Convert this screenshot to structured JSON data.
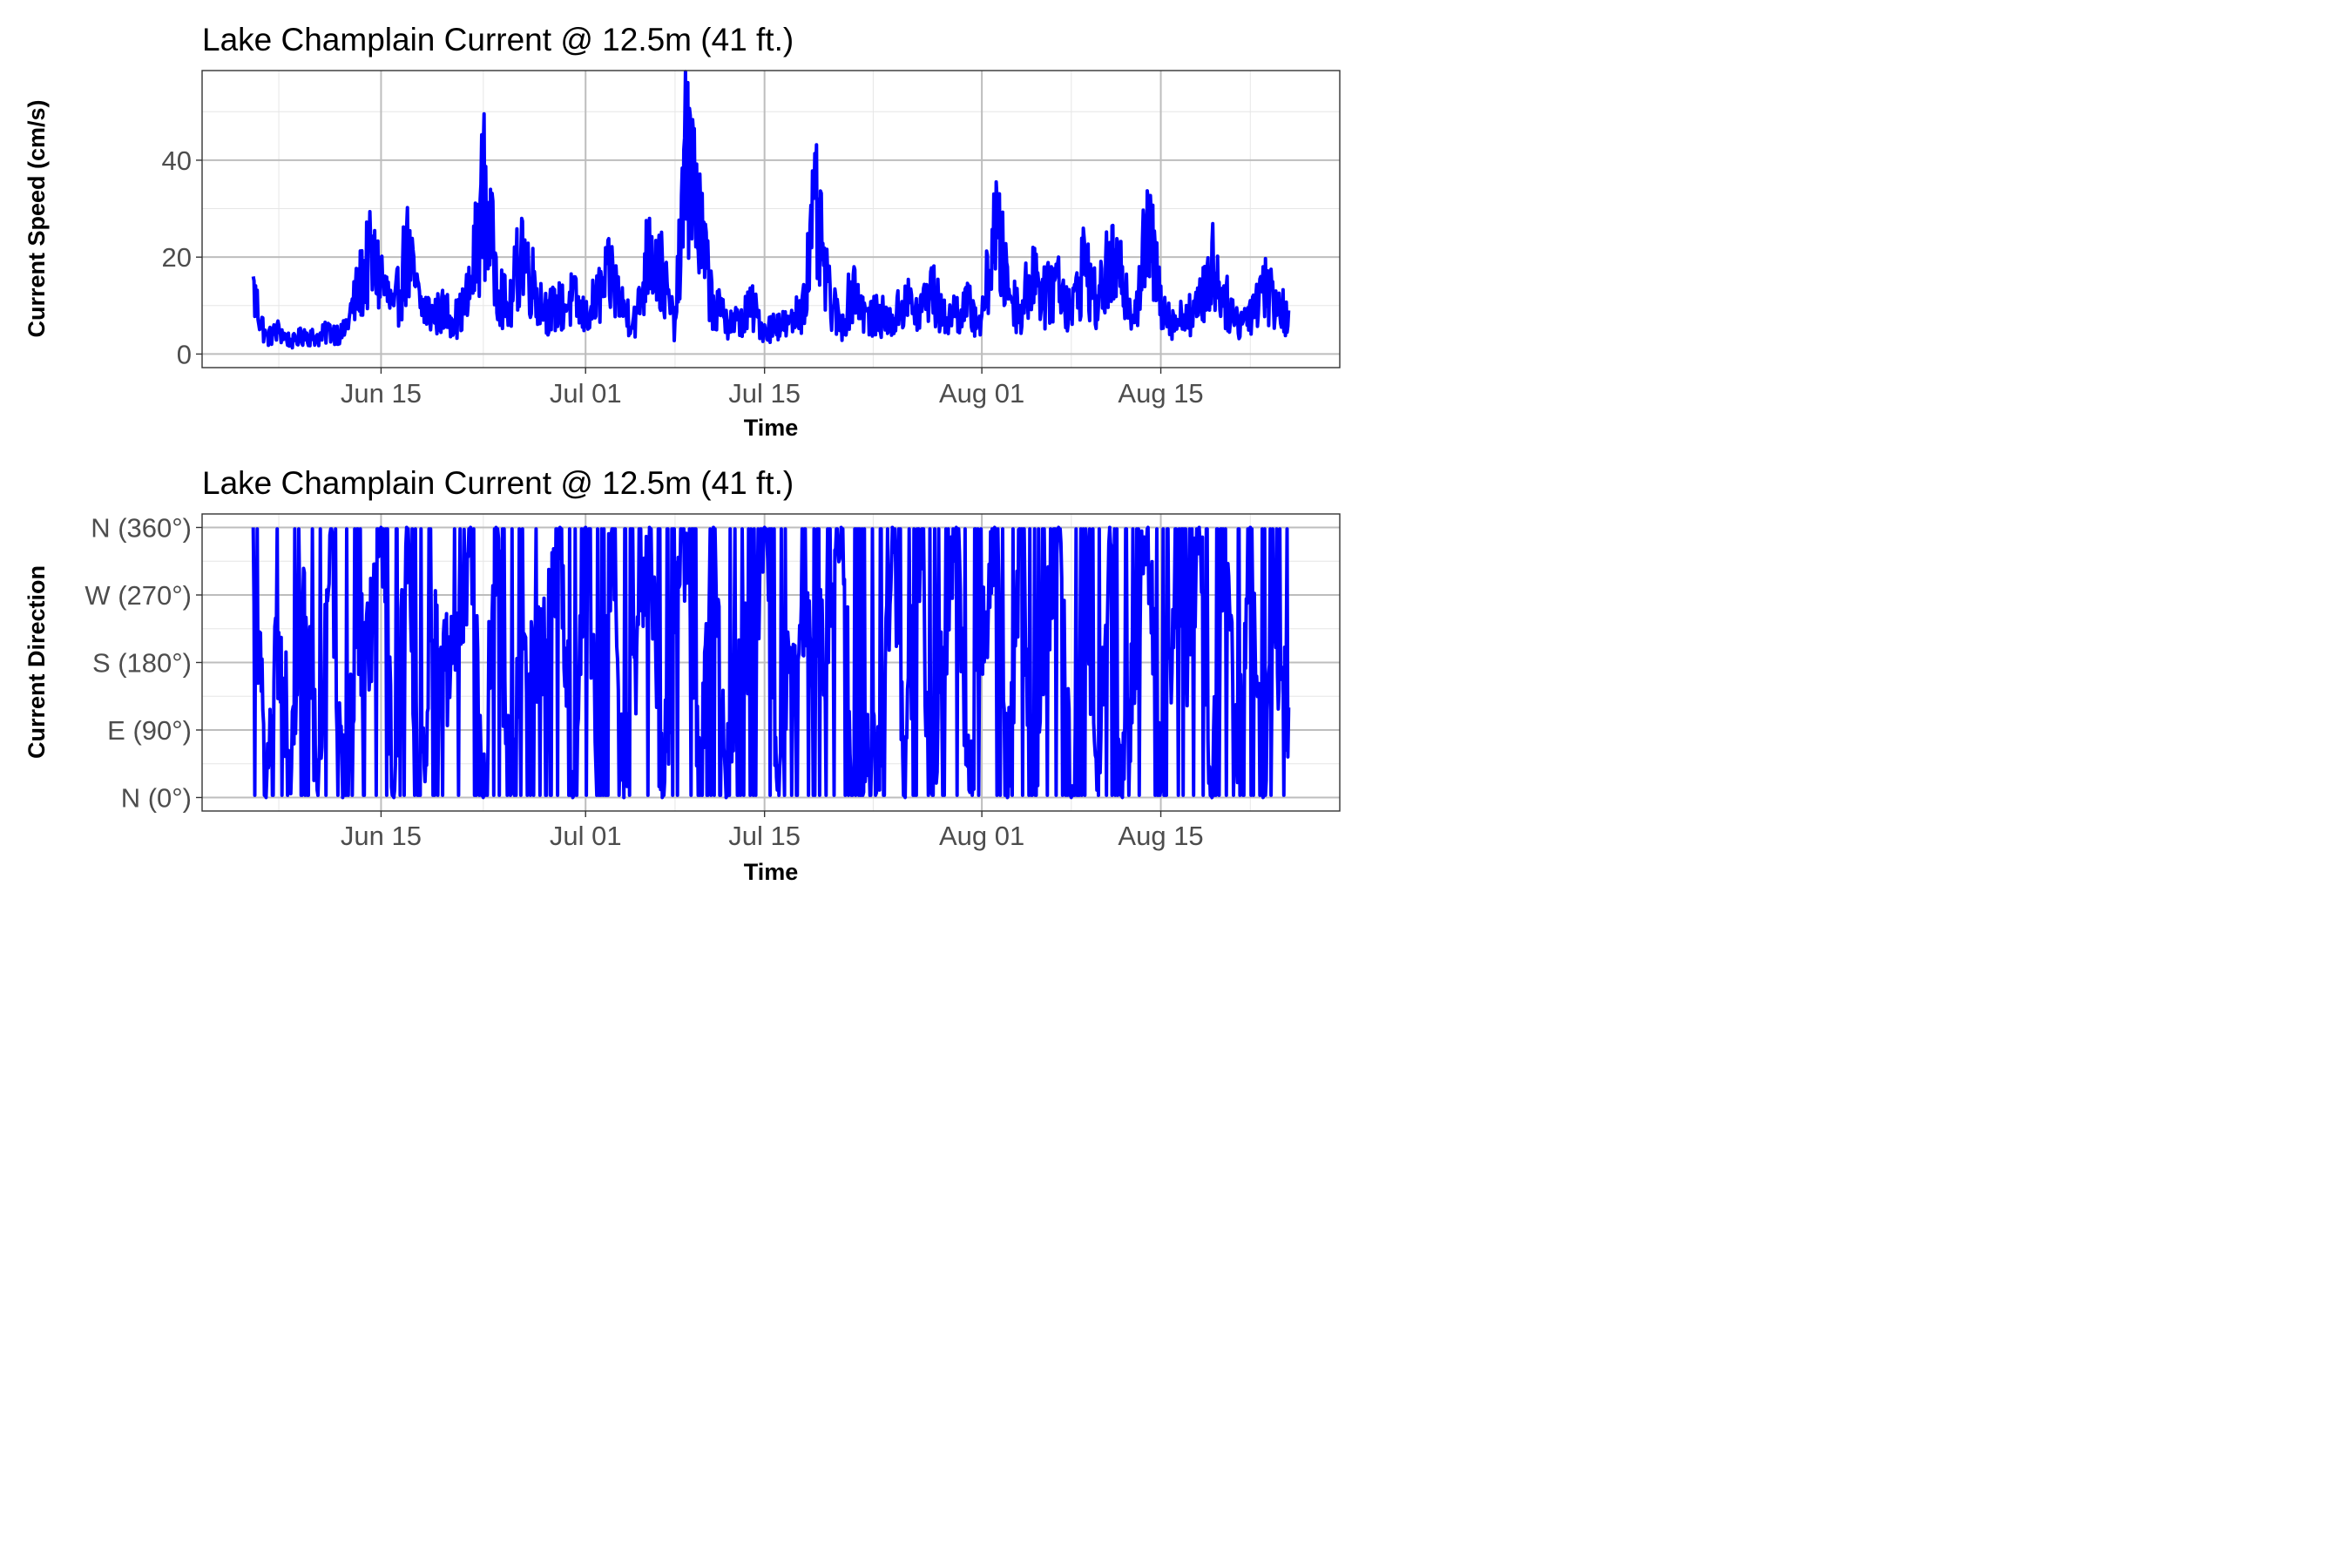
{
  "chart_data": [
    {
      "type": "line",
      "title": "Lake Champlain Current @ 12.5m (41 ft.)",
      "xlabel": "Time",
      "ylabel": "Current Speed (cm/s)",
      "x_ticks": [
        "Jun 15",
        "Jul 01",
        "Jul 15",
        "Aug 01",
        "Aug 15"
      ],
      "x_tick_dates": [
        "2019-06-15",
        "2019-07-01",
        "2019-07-15",
        "2019-08-01",
        "2019-08-15"
      ],
      "xlim": [
        "2019-06-01",
        "2019-08-29"
      ],
      "y_ticks": [
        0,
        20,
        40
      ],
      "ylim": [
        -2.8,
        58.5
      ],
      "grid": true,
      "series": [
        {
          "color": "#0000ff",
          "x": [
            "2019-06-05",
            "2019-06-06",
            "2019-06-07",
            "2019-06-08",
            "2019-06-09",
            "2019-06-10",
            "2019-06-11",
            "2019-06-12",
            "2019-06-13",
            "2019-06-14",
            "2019-06-15",
            "2019-06-16",
            "2019-06-17",
            "2019-06-18",
            "2019-06-19",
            "2019-06-20",
            "2019-06-21",
            "2019-06-22",
            "2019-06-23",
            "2019-06-24",
            "2019-06-25",
            "2019-06-26",
            "2019-06-27",
            "2019-06-28",
            "2019-06-29",
            "2019-06-30",
            "2019-07-01",
            "2019-07-02",
            "2019-07-03",
            "2019-07-04",
            "2019-07-05",
            "2019-07-06",
            "2019-07-07",
            "2019-07-08",
            "2019-07-09",
            "2019-07-10",
            "2019-07-11",
            "2019-07-12",
            "2019-07-13",
            "2019-07-14",
            "2019-07-15",
            "2019-07-16",
            "2019-07-17",
            "2019-07-18",
            "2019-07-19",
            "2019-07-20",
            "2019-07-21",
            "2019-07-22",
            "2019-07-23",
            "2019-07-24",
            "2019-07-25",
            "2019-07-26",
            "2019-07-27",
            "2019-07-28",
            "2019-07-29",
            "2019-07-30",
            "2019-07-31",
            "2019-08-01",
            "2019-08-02",
            "2019-08-03",
            "2019-08-04",
            "2019-08-05",
            "2019-08-06",
            "2019-08-07",
            "2019-08-08",
            "2019-08-09",
            "2019-08-10",
            "2019-08-11",
            "2019-08-12",
            "2019-08-13",
            "2019-08-14",
            "2019-08-15",
            "2019-08-16",
            "2019-08-17",
            "2019-08-18",
            "2019-08-19",
            "2019-08-20",
            "2019-08-21",
            "2019-08-22",
            "2019-08-23",
            "2019-08-24",
            "2019-08-25"
          ],
          "y": [
            16,
            4,
            6,
            3,
            5,
            4,
            6,
            5,
            14,
            24,
            20,
            10,
            26,
            13,
            10,
            11,
            9,
            16,
            42,
            20,
            10,
            28,
            17,
            11,
            12,
            14,
            9,
            15,
            20,
            11,
            9,
            28,
            20,
            7,
            56,
            30,
            12,
            9,
            8,
            12,
            6,
            8,
            7,
            13,
            36,
            15,
            7,
            18,
            9,
            10,
            8,
            14,
            10,
            17,
            9,
            11,
            12,
            8,
            33,
            18,
            10,
            22,
            14,
            20,
            10,
            24,
            12,
            23,
            18,
            11,
            32,
            14,
            8,
            10,
            12,
            23,
            14,
            8,
            11,
            18,
            13,
            9
          ]
        }
      ]
    },
    {
      "type": "line",
      "title": "Lake Champlain Current @ 12.5m (41 ft.)",
      "xlabel": "Time",
      "ylabel": "Current Direction",
      "x_ticks": [
        "Jun 15",
        "Jul 01",
        "Jul 15",
        "Aug 01",
        "Aug 15"
      ],
      "x_tick_dates": [
        "2019-06-15",
        "2019-07-01",
        "2019-07-15",
        "2019-08-01",
        "2019-08-15"
      ],
      "xlim": [
        "2019-06-01",
        "2019-08-29"
      ],
      "y_ticks": [
        0,
        90,
        180,
        270,
        360
      ],
      "y_tick_labels": [
        "N (0°)",
        "E (90°)",
        "S (180°)",
        "W (270°)",
        "N (360°)"
      ],
      "ylim": [
        -18,
        378
      ],
      "grid": true,
      "series": [
        {
          "color": "#0000ff",
          "x": [
            "2019-06-05",
            "2019-06-06",
            "2019-06-07",
            "2019-06-08",
            "2019-06-09",
            "2019-06-10",
            "2019-06-11",
            "2019-06-12",
            "2019-06-13",
            "2019-06-14",
            "2019-06-15",
            "2019-06-16",
            "2019-06-17",
            "2019-06-18",
            "2019-06-19",
            "2019-06-20",
            "2019-06-21",
            "2019-06-22",
            "2019-06-23",
            "2019-06-24",
            "2019-06-25",
            "2019-06-26",
            "2019-06-27",
            "2019-06-28",
            "2019-06-29",
            "2019-06-30",
            "2019-07-01",
            "2019-07-02",
            "2019-07-03",
            "2019-07-04",
            "2019-07-05",
            "2019-07-06",
            "2019-07-07",
            "2019-07-08",
            "2019-07-09",
            "2019-07-10",
            "2019-07-11",
            "2019-07-12",
            "2019-07-13",
            "2019-07-14",
            "2019-07-15",
            "2019-07-16",
            "2019-07-17",
            "2019-07-18",
            "2019-07-19",
            "2019-07-20",
            "2019-07-21",
            "2019-07-22",
            "2019-07-23",
            "2019-07-24",
            "2019-07-25",
            "2019-07-26",
            "2019-07-27",
            "2019-07-28",
            "2019-07-29",
            "2019-07-30",
            "2019-07-31",
            "2019-08-01",
            "2019-08-02",
            "2019-08-03",
            "2019-08-04",
            "2019-08-05",
            "2019-08-06",
            "2019-08-07",
            "2019-08-08",
            "2019-08-09",
            "2019-08-10",
            "2019-08-11",
            "2019-08-12",
            "2019-08-13",
            "2019-08-14",
            "2019-08-15",
            "2019-08-16",
            "2019-08-17",
            "2019-08-18",
            "2019-08-19",
            "2019-08-20",
            "2019-08-21",
            "2019-08-22",
            "2019-08-23",
            "2019-08-24",
            "2019-08-25"
          ],
          "y": [
            360,
            0,
            220,
            40,
            300,
            10,
            350,
            0,
            200,
            190,
            360,
            0,
            360,
            10,
            210,
            170,
            200,
            360,
            0,
            360,
            30,
            200,
            190,
            210,
            360,
            0,
            360,
            10,
            350,
            0,
            200,
            360,
            0,
            220,
            350,
            10,
            360,
            0,
            210,
            200,
            360,
            10,
            200,
            190,
            210,
            180,
            360,
            20,
            60,
            10,
            360,
            0,
            350,
            20,
            200,
            360,
            10,
            190,
            360,
            0,
            350,
            20,
            200,
            360,
            0,
            350,
            10,
            360,
            0,
            200,
            360,
            10,
            200,
            190,
            360,
            0,
            330,
            20,
            360,
            0,
            200,
            120
          ]
        }
      ]
    }
  ]
}
